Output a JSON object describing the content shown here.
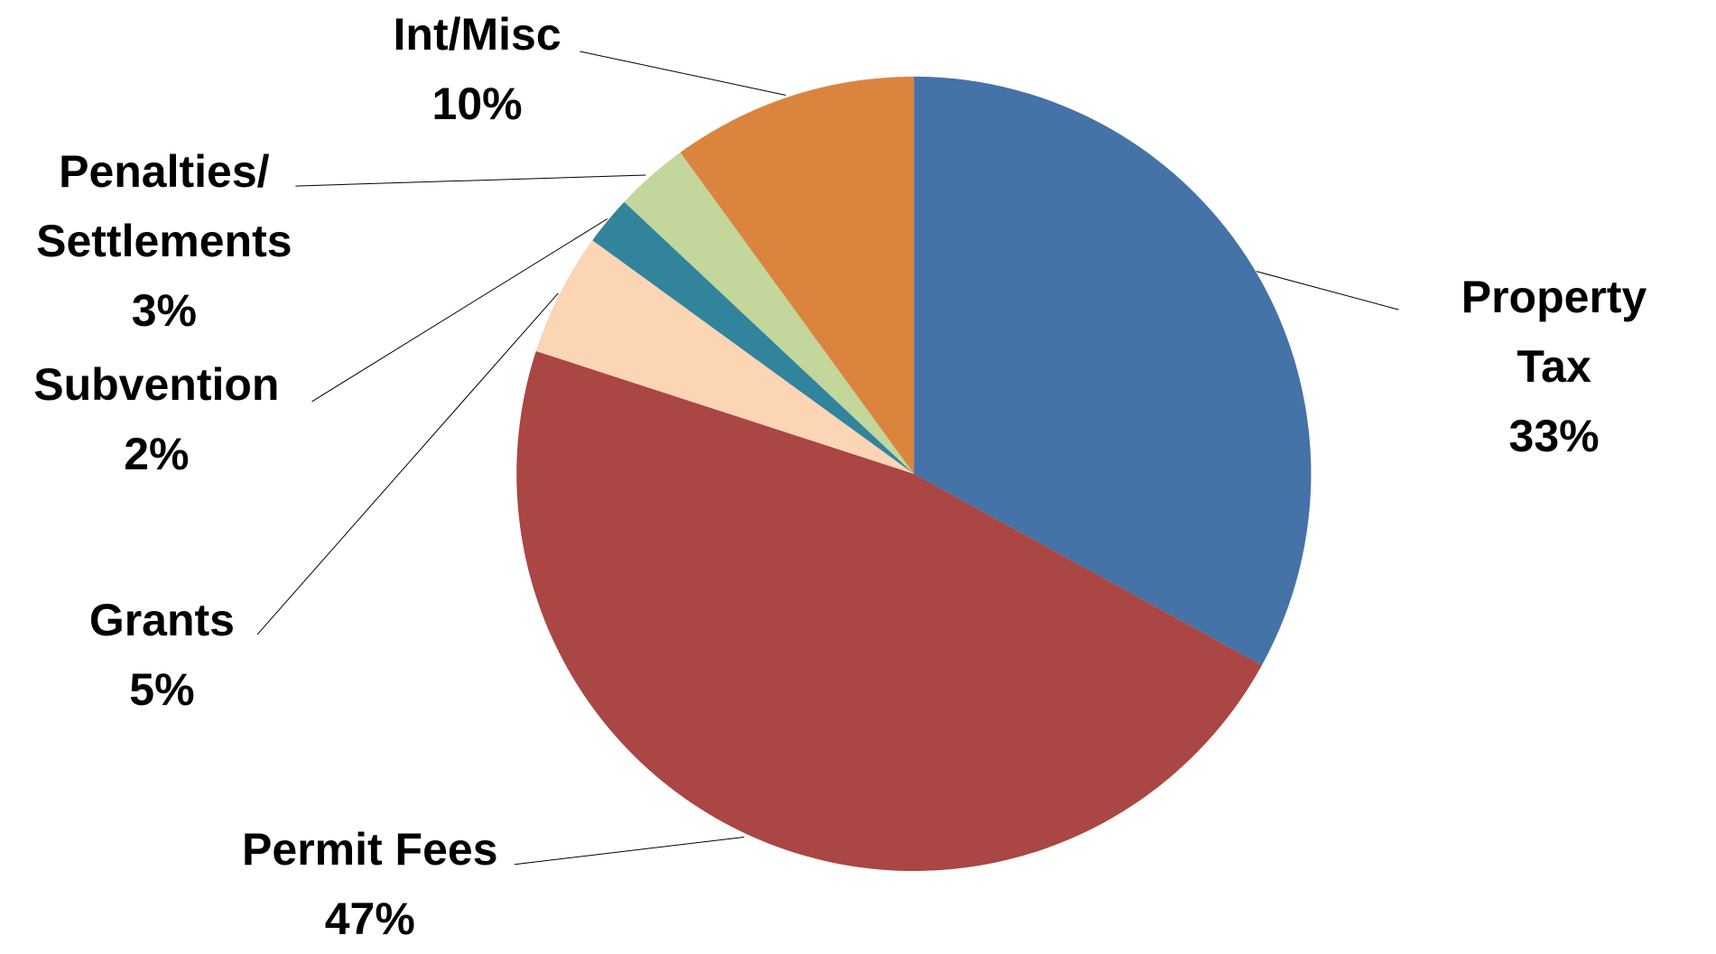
{
  "chart_data": {
    "type": "pie",
    "categories": [
      "Property Tax",
      "Permit Fees",
      "Grants",
      "Subvention",
      "Penalties/\nSettlements",
      "Int/Misc"
    ],
    "values": [
      33,
      47,
      5,
      2,
      3,
      10
    ],
    "value_labels": [
      "33%",
      "47%",
      "5%",
      "2%",
      "3%",
      "10%"
    ],
    "colors": [
      "#4572a7",
      "#aa4643",
      "#fcd5b5",
      "#31849b",
      "#c3d69b",
      "#db843d"
    ]
  }
}
